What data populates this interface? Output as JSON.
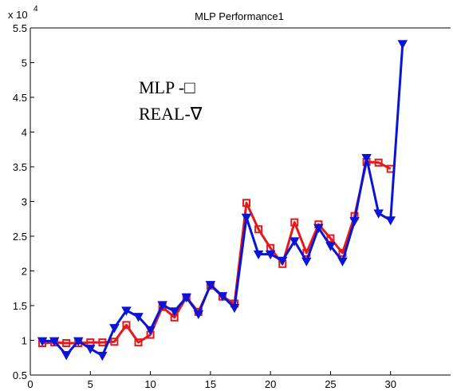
{
  "chart_data": {
    "type": "line",
    "title": "MLP Performance1",
    "xlabel": "",
    "ylabel": "",
    "xlim": [
      0,
      35
    ],
    "ylim": [
      0.5,
      5.5
    ],
    "x_ticks": [
      "0",
      "5",
      "10",
      "15",
      "20",
      "25",
      "30"
    ],
    "y_ticks": [
      "0.5",
      "1",
      "1.5",
      "2",
      "2.5",
      "3",
      "3.5",
      "4",
      "4.5",
      "5",
      "5.5"
    ],
    "y_exponent": {
      "base": "x 10",
      "power": "4"
    },
    "annotations": [
      "MLP -□",
      "REAL-∇"
    ],
    "grid": false,
    "series": [
      {
        "marker": "square",
        "color": "#e31a1c",
        "x": [
          1,
          2,
          3,
          4,
          5,
          6,
          7,
          8,
          9,
          10,
          11,
          12,
          13,
          14,
          15,
          16,
          17,
          18,
          19,
          20,
          21,
          22,
          23,
          24,
          25,
          26,
          27,
          28,
          29,
          30
        ],
        "values": [
          0.96,
          0.97,
          0.96,
          0.96,
          0.97,
          0.97,
          0.98,
          1.22,
          0.97,
          1.08,
          1.48,
          1.33,
          1.62,
          1.41,
          1.79,
          1.63,
          1.53,
          2.98,
          2.6,
          2.33,
          2.1,
          2.7,
          2.26,
          2.67,
          2.47,
          2.26,
          2.79,
          3.57,
          3.56,
          3.47
        ]
      },
      {
        "marker": "triangle-down",
        "color": "#0a14d6",
        "x": [
          1,
          2,
          3,
          4,
          5,
          6,
          7,
          8,
          9,
          10,
          11,
          12,
          13,
          14,
          15,
          16,
          17,
          18,
          19,
          20,
          21,
          22,
          23,
          24,
          25,
          26,
          27,
          28,
          29,
          30,
          31
        ],
        "values": [
          0.99,
          0.99,
          0.79,
          0.99,
          0.88,
          0.78,
          1.18,
          1.43,
          1.34,
          1.15,
          1.51,
          1.42,
          1.62,
          1.38,
          1.8,
          1.64,
          1.47,
          2.77,
          2.24,
          2.24,
          2.15,
          2.43,
          2.14,
          2.62,
          2.36,
          2.14,
          2.72,
          3.63,
          2.83,
          2.73,
          5.27
        ]
      }
    ]
  }
}
